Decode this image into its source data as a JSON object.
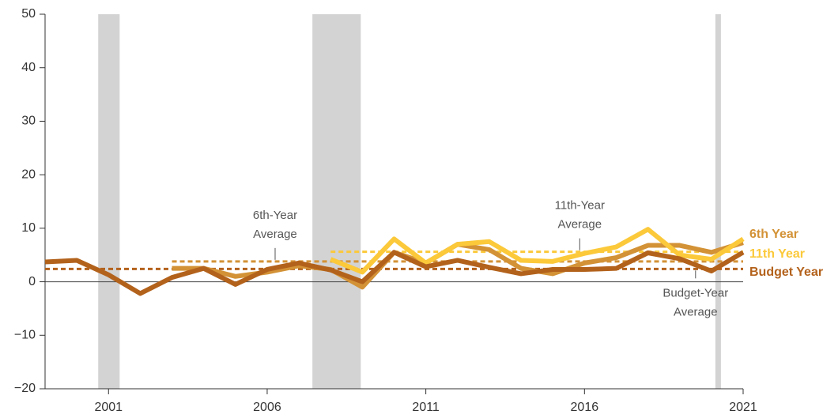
{
  "chart_data": {
    "type": "line",
    "x": [
      1999,
      2000,
      2001,
      2002,
      2003,
      2004,
      2005,
      2006,
      2007,
      2008,
      2009,
      2010,
      2011,
      2012,
      2013,
      2014,
      2015,
      2016,
      2017,
      2018,
      2019,
      2020,
      2021
    ],
    "series": [
      {
        "name": "6th Year",
        "color": "#d39236",
        "values": [
          null,
          null,
          null,
          null,
          2.5,
          2.5,
          1.0,
          1.8,
          3.0,
          2.3,
          -1.0,
          5.5,
          3.5,
          7.0,
          6.0,
          2.5,
          1.5,
          3.5,
          4.5,
          6.8,
          6.8,
          5.5,
          7.3
        ]
      },
      {
        "name": "11th Year",
        "color": "#fbc93a",
        "values": [
          null,
          null,
          null,
          null,
          null,
          null,
          null,
          null,
          null,
          4.2,
          1.8,
          8.0,
          3.5,
          7.0,
          7.5,
          4.0,
          3.8,
          5.3,
          6.5,
          9.8,
          5.0,
          4.2,
          8.0
        ]
      },
      {
        "name": "Budget Year",
        "color": "#b3621c",
        "values": [
          3.7,
          4.0,
          1.3,
          -2.2,
          0.8,
          2.5,
          -0.5,
          2.3,
          3.5,
          2.2,
          0,
          5.5,
          2.8,
          4.0,
          2.7,
          1.5,
          2.3,
          2.3,
          2.5,
          5.4,
          4.3,
          2.0,
          5.5
        ]
      }
    ],
    "averages": [
      {
        "lines": [
          "6th-Year",
          "Average"
        ],
        "value": 3.8,
        "from": 2003,
        "to": 2021,
        "color": "#d39236"
      },
      {
        "lines": [
          "11th-Year",
          "Average"
        ],
        "value": 5.6,
        "from": 2008,
        "to": 2021,
        "color": "#fbc93a"
      },
      {
        "lines": [
          "Budget-Year",
          "Average"
        ],
        "value": 2.4,
        "from": 1999,
        "to": 2021,
        "color": "#b3621c"
      }
    ],
    "recessions": [
      [
        2000.675,
        2001.35
      ],
      [
        2007.425,
        2008.95
      ],
      [
        2020.125,
        2020.3
      ]
    ],
    "xlim": [
      1999,
      2021
    ],
    "xticks": [
      2001,
      2006,
      2011,
      2016,
      2021
    ],
    "ylim": [
      -20,
      50
    ],
    "yticks": [
      {
        "value": -20,
        "label": "−20"
      },
      {
        "value": -10,
        "label": "−10"
      },
      0,
      10,
      20,
      30,
      40,
      50
    ]
  }
}
